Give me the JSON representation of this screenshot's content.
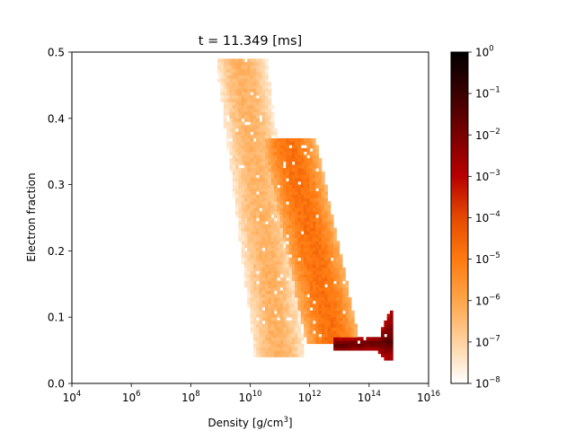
{
  "chart_data": {
    "type": "heatmap",
    "title": "t = 11.349 [ms]",
    "xlabel_main": "Density [g/cm",
    "xlabel_sup": "3",
    "xlabel_end": "]",
    "ylabel": "Electron fraction",
    "xscale": "log",
    "xlim_exponent": [
      4,
      16
    ],
    "ylim": [
      0.0,
      0.5
    ],
    "x_ticks": [
      {
        "base": "10",
        "exp": "4"
      },
      {
        "base": "10",
        "exp": "6"
      },
      {
        "base": "10",
        "exp": "8"
      },
      {
        "base": "10",
        "exp": "10"
      },
      {
        "base": "10",
        "exp": "12"
      },
      {
        "base": "10",
        "exp": "14"
      },
      {
        "base": "10",
        "exp": "16"
      }
    ],
    "y_ticks": [
      "0.0",
      "0.1",
      "0.2",
      "0.3",
      "0.4",
      "0.5"
    ],
    "colorbar": {
      "scale": "log",
      "ticks": [
        {
          "base": "10",
          "exp": "0"
        },
        {
          "base": "10",
          "exp": "−1"
        },
        {
          "base": "10",
          "exp": "−2"
        },
        {
          "base": "10",
          "exp": "−3"
        },
        {
          "base": "10",
          "exp": "−4"
        },
        {
          "base": "10",
          "exp": "−5"
        },
        {
          "base": "10",
          "exp": "−6"
        },
        {
          "base": "10",
          "exp": "−7"
        },
        {
          "base": "10",
          "exp": "−8"
        }
      ],
      "range_exponent": [
        -8,
        0
      ],
      "colormap": [
        "#ffffff",
        "#ffd2a0",
        "#ffa54a",
        "#ff7a10",
        "#e44a00",
        "#b80000",
        "#7a0000",
        "#3a0000",
        "#000000"
      ]
    },
    "regions": [
      {
        "name": "main-band",
        "ye_top": 0.49,
        "x_at_top": 9.7,
        "ye_bottom": 0.04,
        "x_at_bottom": 11.0,
        "width_dex": 1.7,
        "log_value_center": -6.3,
        "log_value_edge": -7.6
      },
      {
        "name": "second-band",
        "ye_top": 0.37,
        "x_at_top": 11.3,
        "ye_bottom": 0.06,
        "x_at_bottom": 12.8,
        "width_dex": 1.8,
        "log_value_center": -4.8,
        "log_value_edge": -6.4
      },
      {
        "name": "high-density-branch",
        "ye_range": [
          0.04,
          0.13
        ],
        "x_range_exponent": [
          12.8,
          14.8
        ],
        "log_value_center": -1.5,
        "log_value_edge": -3.0
      }
    ]
  }
}
